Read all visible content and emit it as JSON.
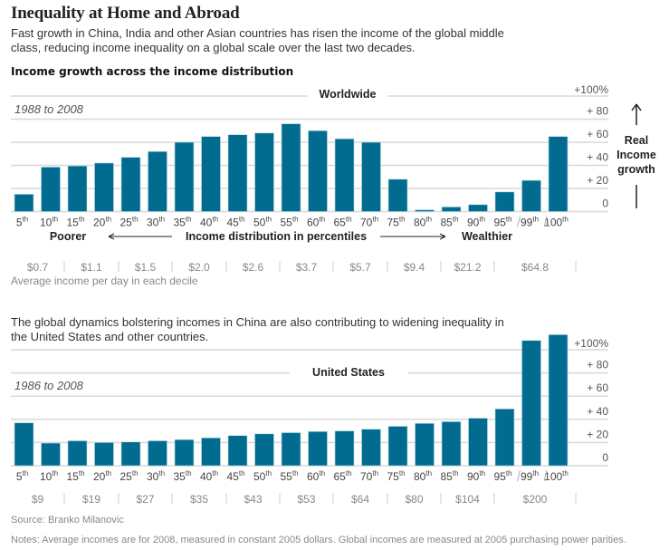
{
  "header": {
    "title": "Inequality at Home and Abroad",
    "intro": "Fast growth in China, India and other Asian countries has risen the income of the global middle class, reducing income inequality on a global scale over the last two decades.",
    "subhead": "Income growth across the income distribution"
  },
  "middle_text": "The global dynamics bolstering incomes in China are also contributing to widening inequality in the United States and other countries.",
  "axis_side_label": [
    "Real",
    "Income",
    "growth"
  ],
  "distribution_labels": {
    "poorer": "Poorer",
    "center": "Income distribution in percentiles",
    "wealthier": "Wealthier"
  },
  "income_caption": "Average income per day in each decile",
  "source": "Source: Branko Milanovic",
  "notes": "Notes: Average incomes are for 2008, measured in constant 2005 dollars. Global incomes are measured at 2005 purchasing power parities.",
  "colors": {
    "bar": "#016c8f",
    "grid": "#d8d8d8",
    "muted_text": "#888888"
  },
  "chart_data": [
    {
      "type": "bar",
      "title": "Worldwide",
      "period": "1988 to 2008",
      "xlabel": "Income distribution in percentiles",
      "ylabel": "Real Income growth",
      "ylim": [
        0,
        100
      ],
      "yticks": [
        "0",
        "+  20",
        "+  40",
        "+  60",
        "+  80",
        "+100%"
      ],
      "grid": true,
      "categories": [
        "5",
        "10",
        "15",
        "20",
        "25",
        "30",
        "35",
        "40",
        "45",
        "50",
        "55",
        "60",
        "65",
        "70",
        "75",
        "80",
        "85",
        "90",
        "95",
        "99",
        "100"
      ],
      "category_suffix": "th",
      "values": [
        15,
        38.5,
        39.5,
        42,
        47,
        52,
        60,
        65,
        66.5,
        68,
        76,
        70,
        63,
        60,
        28,
        1.5,
        4,
        6,
        17,
        27,
        65
      ],
      "income_labels": [
        "$0.7",
        "$1.1",
        "$1.5",
        "$2.0",
        "$2.6",
        "$3.7",
        "$5.7",
        "$9.4",
        "$21.2",
        "$64.8"
      ]
    },
    {
      "type": "bar",
      "title": "United States",
      "period": "1986 to 2008",
      "ylabel": "Real Income growth",
      "ylim": [
        0,
        100
      ],
      "yticks": [
        "0",
        "+  20",
        "+  40",
        "+  60",
        "+  80",
        "+100%"
      ],
      "grid": true,
      "categories": [
        "5",
        "10",
        "15",
        "20",
        "25",
        "30",
        "35",
        "40",
        "45",
        "50",
        "55",
        "60",
        "65",
        "70",
        "75",
        "80",
        "85",
        "90",
        "95",
        "99",
        "100"
      ],
      "category_suffix": "th",
      "values": [
        37,
        19.5,
        21.5,
        20,
        20.5,
        21.5,
        22.5,
        24,
        26,
        27.5,
        28.5,
        29.5,
        30,
        31.5,
        34,
        36.5,
        38,
        41,
        49,
        108,
        113
      ],
      "income_labels": [
        "$9",
        "$19",
        "$27",
        "$35",
        "$43",
        "$53",
        "$64",
        "$80",
        "$104",
        "$200"
      ]
    }
  ]
}
